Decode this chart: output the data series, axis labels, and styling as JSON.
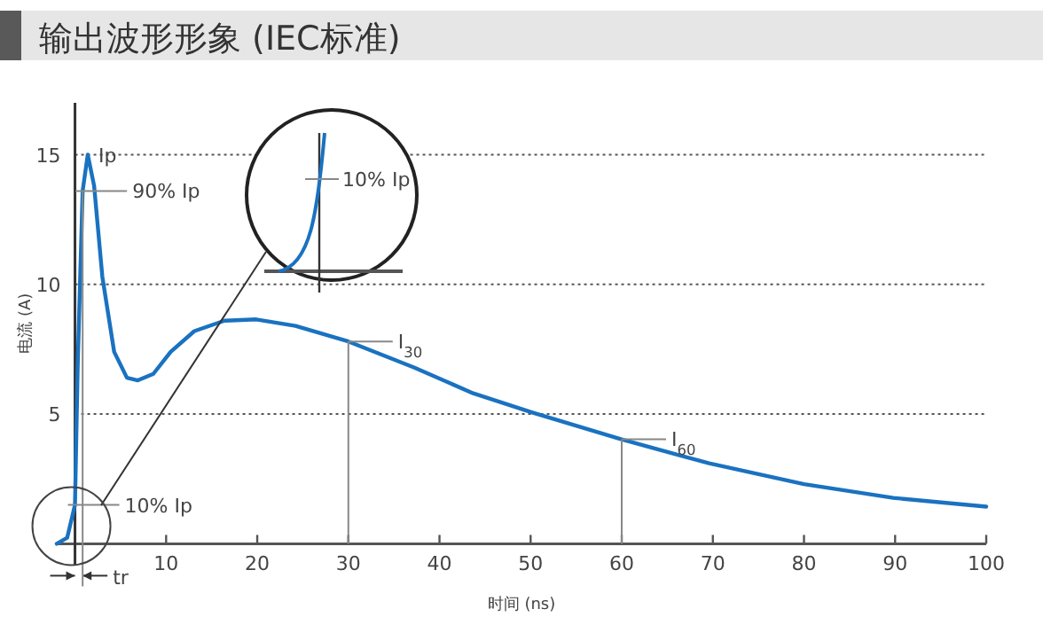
{
  "chart_data": {
    "type": "line",
    "title": "输出波形形象 (IEC标准)",
    "xlabel": "时间 (ns)",
    "ylabel": "电流 (A)",
    "x": [
      -2,
      -0.86,
      0,
      0.3,
      0.84,
      1.4,
      2.1,
      3.0,
      4.3,
      5.7,
      6.9,
      8.6,
      10.5,
      13.1,
      16.4,
      19.9,
      24.2,
      30,
      37.2,
      43.7,
      50.2,
      59.9,
      69.6,
      80,
      89.8,
      100
    ],
    "series": [
      {
        "color": "#1a72c0",
        "values": [
          0,
          0.23,
          1.5,
          6.9,
          13.6,
          15,
          13.8,
          10.3,
          7.4,
          6.4,
          6.3,
          6.55,
          7.4,
          8.2,
          8.6,
          8.65,
          8.4,
          7.8,
          6.8,
          5.8,
          5.06,
          4.03,
          3.1,
          2.3,
          1.77,
          1.43
        ]
      }
    ],
    "xlim": [
      -2,
      100
    ],
    "xticks": [
      10,
      20,
      30,
      40,
      50,
      60,
      70,
      80,
      90,
      100
    ],
    "ref_lines": [
      {
        "axis": "x",
        "value": 0.84,
        "color": "#888888"
      },
      {
        "axis": "x",
        "value": 30,
        "color": "#888888"
      },
      {
        "axis": "x",
        "value": 60,
        "color": "#888888"
      }
    ],
    "ylim": [
      0,
      17
    ],
    "yticks": [
      5,
      10,
      15
    ],
    "grid": "y",
    "annotations": [
      {
        "text": "Ip",
        "x": 1.4,
        "y": 15
      },
      {
        "text": "90% Ip",
        "x": 0.84,
        "y": 13.6
      },
      {
        "text": "10% Ip",
        "x": 0,
        "y": 1.5
      },
      {
        "text": "I$_{30}$",
        "x": 30,
        "y": 7.8
      },
      {
        "text": "I$_{60}$",
        "x": 60,
        "y": 4.03
      },
      "10% Ip",
      "tr"
    ]
  }
}
